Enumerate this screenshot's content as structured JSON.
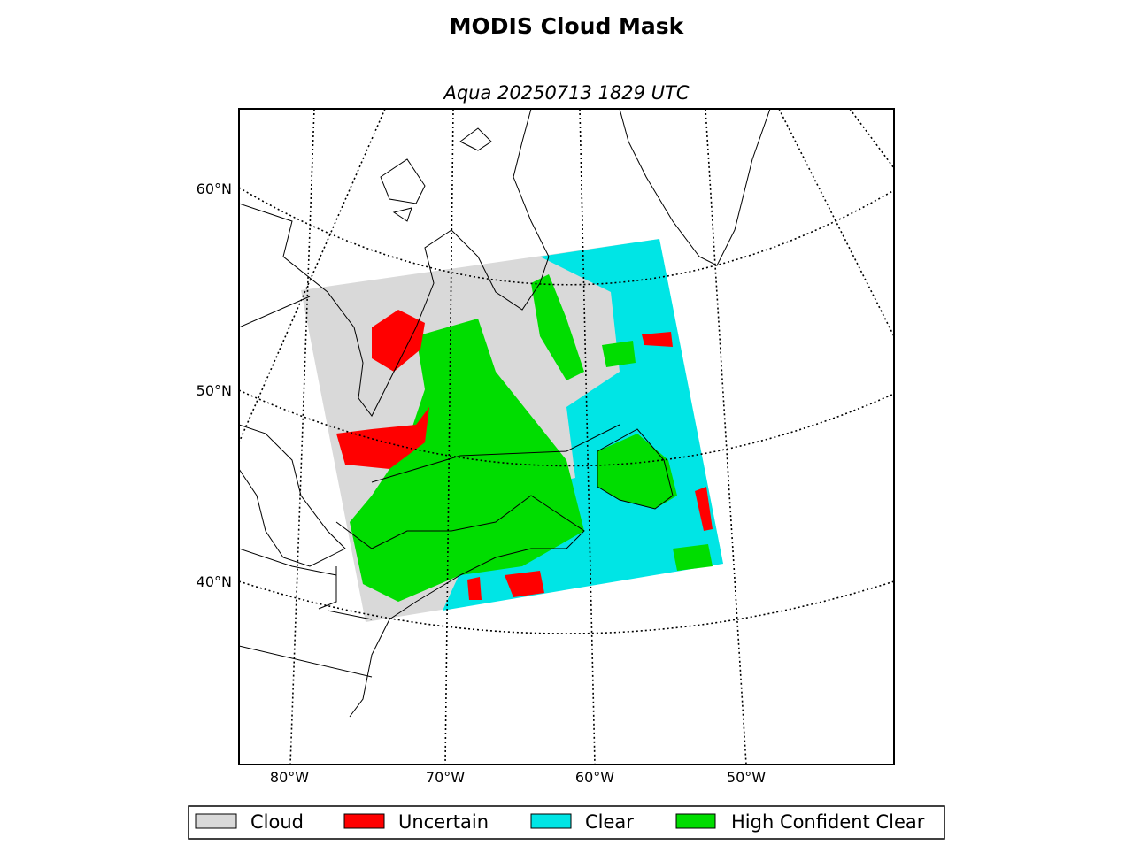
{
  "title": "MODIS Cloud Mask",
  "subtitle": "Aqua 20250713 1829 UTC",
  "lat_labels": [
    "60°N",
    "50°N",
    "40°N"
  ],
  "lon_labels": [
    "80°W",
    "70°W",
    "60°W",
    "50°W"
  ],
  "legend": [
    {
      "label": "Cloud",
      "color": "#d9d9d9"
    },
    {
      "label": "Uncertain",
      "color": "#ff0000"
    },
    {
      "label": "Clear",
      "color": "#00e5e5"
    },
    {
      "label": "High Confident Clear",
      "color": "#00dd00"
    }
  ]
}
